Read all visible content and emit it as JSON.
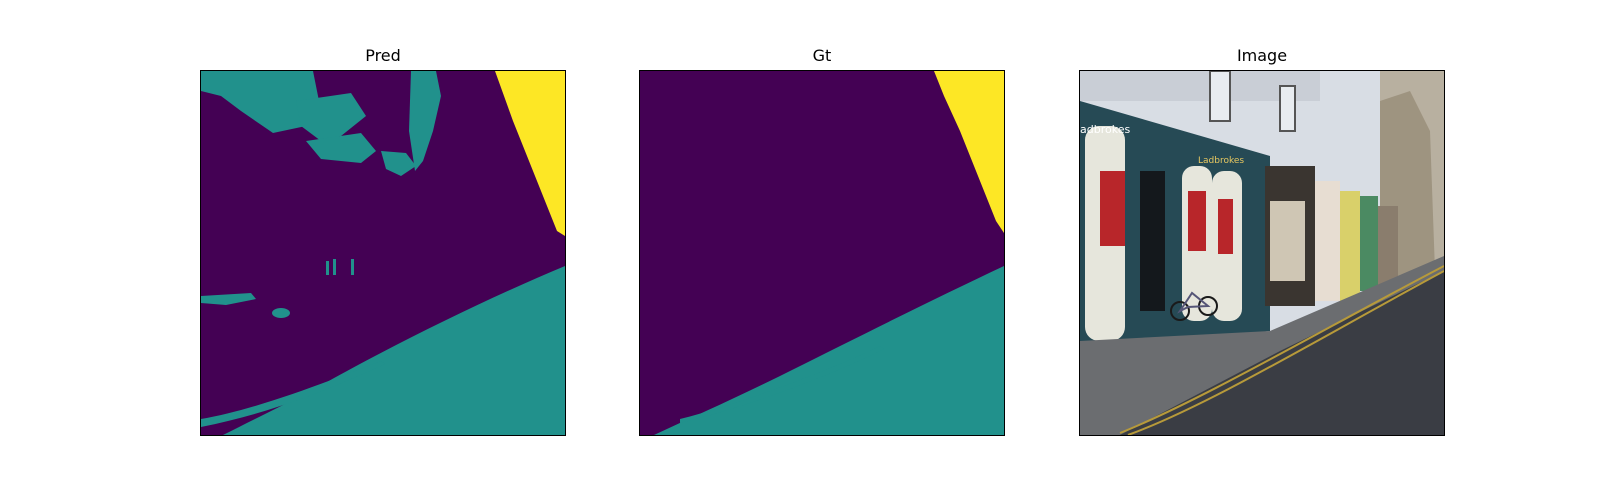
{
  "panels": {
    "pred": {
      "title": "Pred"
    },
    "gt": {
      "title": "Gt"
    },
    "image": {
      "title": "Image"
    }
  },
  "colors": {
    "class_0": "#440154",
    "class_1": "#21918c",
    "class_2": "#fde725"
  },
  "photo_text": {
    "shop_sign_left": "adbrokes",
    "shop_sign_center": "Ladbrokes"
  }
}
